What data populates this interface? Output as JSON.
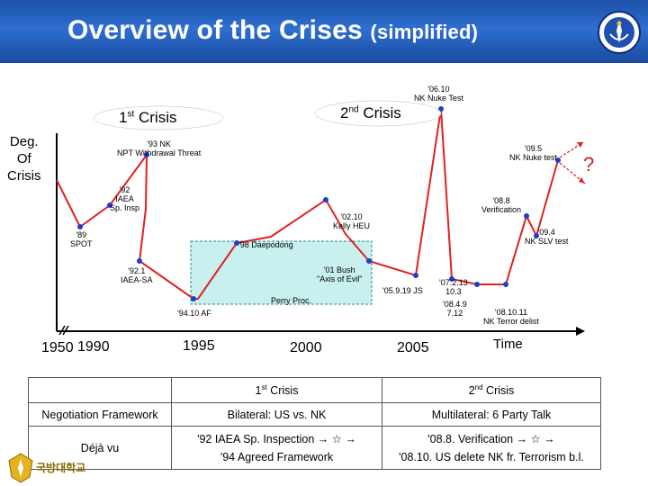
{
  "header": {
    "title_main": "Overview of the Crises",
    "title_sub": "(simplified)"
  },
  "emblem": {
    "icon": "naval-academy-emblem-icon"
  },
  "diagram": {
    "crisis1_label": "1",
    "crisis1_sup": "st",
    "crisis1_word": " Crisis",
    "crisis2_label": "2",
    "crisis2_sup": "nd",
    "crisis2_word": " Crisis",
    "y_label_line1": "Deg.",
    "y_label_line2": "Of",
    "y_label_line3": "Crisis",
    "x_label": "Time",
    "question_mark": "?",
    "years": [
      "1950",
      "1990",
      "1995",
      "2000",
      "2005"
    ],
    "events": [
      {
        "id": "e89",
        "lines": [
          "'89",
          "SPOT"
        ]
      },
      {
        "id": "e92a",
        "lines": [
          "'92",
          "IAEA",
          "Sp. Insp"
        ]
      },
      {
        "id": "e93",
        "lines": [
          "'93 NK",
          "NPT Withdrawal Threat"
        ]
      },
      {
        "id": "e921",
        "lines": [
          "'92.1",
          "IAEA-SA"
        ]
      },
      {
        "id": "e9410",
        "lines": [
          "'94.10 AF"
        ]
      },
      {
        "id": "e98",
        "lines": [
          "'98 Daepodong"
        ]
      },
      {
        "id": "eperry",
        "lines": [
          "Perry Proc."
        ]
      },
      {
        "id": "e01",
        "lines": [
          "'01 Bush",
          "\"Axis of Evil\""
        ]
      },
      {
        "id": "e0210",
        "lines": [
          "'02.10",
          "Kelly HEU"
        ]
      },
      {
        "id": "e05",
        "lines": [
          "'05.9.19 JS"
        ]
      },
      {
        "id": "e0610",
        "lines": [
          "'06.10",
          "NK Nuke Test"
        ]
      },
      {
        "id": "e07",
        "lines": [
          "'07.2.13",
          "10.3"
        ]
      },
      {
        "id": "e084",
        "lines": [
          "'08.4.9",
          "7.12"
        ]
      },
      {
        "id": "e0811",
        "lines": [
          "'08.10.11",
          "NK Terror delist"
        ]
      },
      {
        "id": "e088",
        "lines": [
          "'08.8",
          "Verification"
        ]
      },
      {
        "id": "e095",
        "lines": [
          "'09.5",
          "NK Nuke test"
        ]
      },
      {
        "id": "e094",
        "lines": [
          "'09.4",
          "NK SLV test"
        ]
      }
    ]
  },
  "table": {
    "header": [
      "",
      "1",
      "st",
      " Crisis",
      "2",
      "nd",
      " Crisis"
    ],
    "row1": [
      "Negotiation Framework",
      "Bilateral: US vs. NK",
      "Multilateral: 6  Party Talk"
    ],
    "row2_label": "Déjà vu",
    "row2_c1_line1": "'92 IAEA Sp. Inspection → ☆ →",
    "row2_c1_line2": "'94 Agreed Framework",
    "row2_c2_line1": "'08.8. Verification → ☆ →",
    "row2_c2_line2": "'08.10. US delete NK fr. Terrorism b.l."
  },
  "footer": {
    "logo_text": "국방대학교"
  },
  "colors": {
    "header_blue": "#2e6fd0",
    "line_red": "#e02020",
    "point_blue": "#1a3fd0",
    "box_fill": "#c8f0ee"
  }
}
